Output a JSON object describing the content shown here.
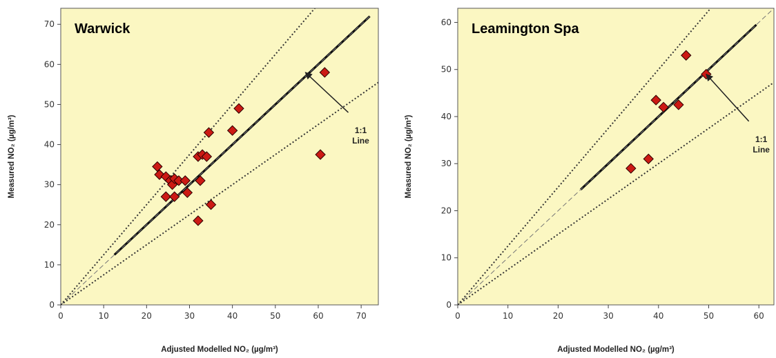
{
  "chart_data": [
    {
      "type": "scatter",
      "title": "Warwick",
      "xlabel": "Adjusted Modelled NO₂ (µg/m³)",
      "ylabel": "Measured NO₂ (µg/m³)",
      "xlim": [
        0,
        74
      ],
      "ylim": [
        0,
        74
      ],
      "xticks": [
        "0",
        "10",
        "20",
        "30",
        "40",
        "50",
        "60",
        "70"
      ],
      "yticks": [
        "0",
        "10",
        "20",
        "30",
        "40",
        "50",
        "60",
        "70"
      ],
      "background": "#fbf7c2",
      "marker_color": "#cc1a14",
      "points": [
        [
          22.5,
          34.5
        ],
        [
          23.0,
          32.5
        ],
        [
          24.5,
          32.0
        ],
        [
          25.5,
          31.0
        ],
        [
          26.0,
          30.0
        ],
        [
          26.5,
          31.5
        ],
        [
          27.5,
          31.0
        ],
        [
          29.0,
          31.0
        ],
        [
          24.5,
          27.0
        ],
        [
          26.5,
          27.0
        ],
        [
          29.5,
          28.0
        ],
        [
          32.0,
          37.0
        ],
        [
          33.0,
          37.5
        ],
        [
          34.0,
          37.0
        ],
        [
          32.5,
          31.0
        ],
        [
          34.5,
          43.0
        ],
        [
          40.0,
          43.5
        ],
        [
          41.5,
          49.0
        ],
        [
          35.0,
          25.0
        ],
        [
          32.0,
          21.0
        ],
        [
          61.5,
          58.0
        ],
        [
          60.5,
          37.5
        ]
      ],
      "reference_lines": [
        {
          "kind": "1:1 thick",
          "x": [
            12.5,
            72
          ],
          "y": [
            12.5,
            72
          ]
        },
        {
          "kind": "1:1 dashed",
          "x": [
            0,
            72
          ],
          "y": [
            0,
            72
          ]
        },
        {
          "kind": "+25%",
          "x": [
            0,
            60
          ],
          "y": [
            0,
            75
          ]
        },
        {
          "kind": "-25%",
          "x": [
            0,
            74
          ],
          "y": [
            0,
            55.5
          ]
        }
      ],
      "annotation": {
        "line1": "1:1",
        "line2": "Line",
        "arrow_from": [
          67,
          48
        ],
        "arrow_to": [
          57,
          58
        ]
      }
    },
    {
      "type": "scatter",
      "title": "Leamington Spa",
      "xlabel": "Adjusted Modelled NO₂ (µg/m³)",
      "ylabel": "Measured NO₂ (µg/m³)",
      "xlim": [
        0,
        63
      ],
      "ylim": [
        0,
        63
      ],
      "xticks": [
        "0",
        "10",
        "20",
        "30",
        "40",
        "50",
        "60"
      ],
      "yticks": [
        "0",
        "10",
        "20",
        "30",
        "40",
        "50",
        "60"
      ],
      "background": "#fbf7c2",
      "marker_color": "#cc1a14",
      "points": [
        [
          34.5,
          29.0
        ],
        [
          38.0,
          31.0
        ],
        [
          39.5,
          43.5
        ],
        [
          41.0,
          42.0
        ],
        [
          44.0,
          42.5
        ],
        [
          45.5,
          53.0
        ],
        [
          49.5,
          49.0
        ]
      ],
      "reference_lines": [
        {
          "kind": "1:1 thick",
          "x": [
            24.5,
            59.5
          ],
          "y": [
            24.5,
            59.5
          ]
        },
        {
          "kind": "1:1 dashed",
          "x": [
            0,
            63
          ],
          "y": [
            0,
            63
          ]
        },
        {
          "kind": "+25%",
          "x": [
            0,
            50.4
          ],
          "y": [
            0,
            63
          ]
        },
        {
          "kind": "-25%",
          "x": [
            0,
            63
          ],
          "y": [
            0,
            47.25
          ]
        }
      ],
      "annotation": {
        "line1": "1:1",
        "line2": "Line",
        "arrow_from": [
          58,
          39
        ],
        "arrow_to": [
          49.5,
          49
        ]
      }
    }
  ]
}
